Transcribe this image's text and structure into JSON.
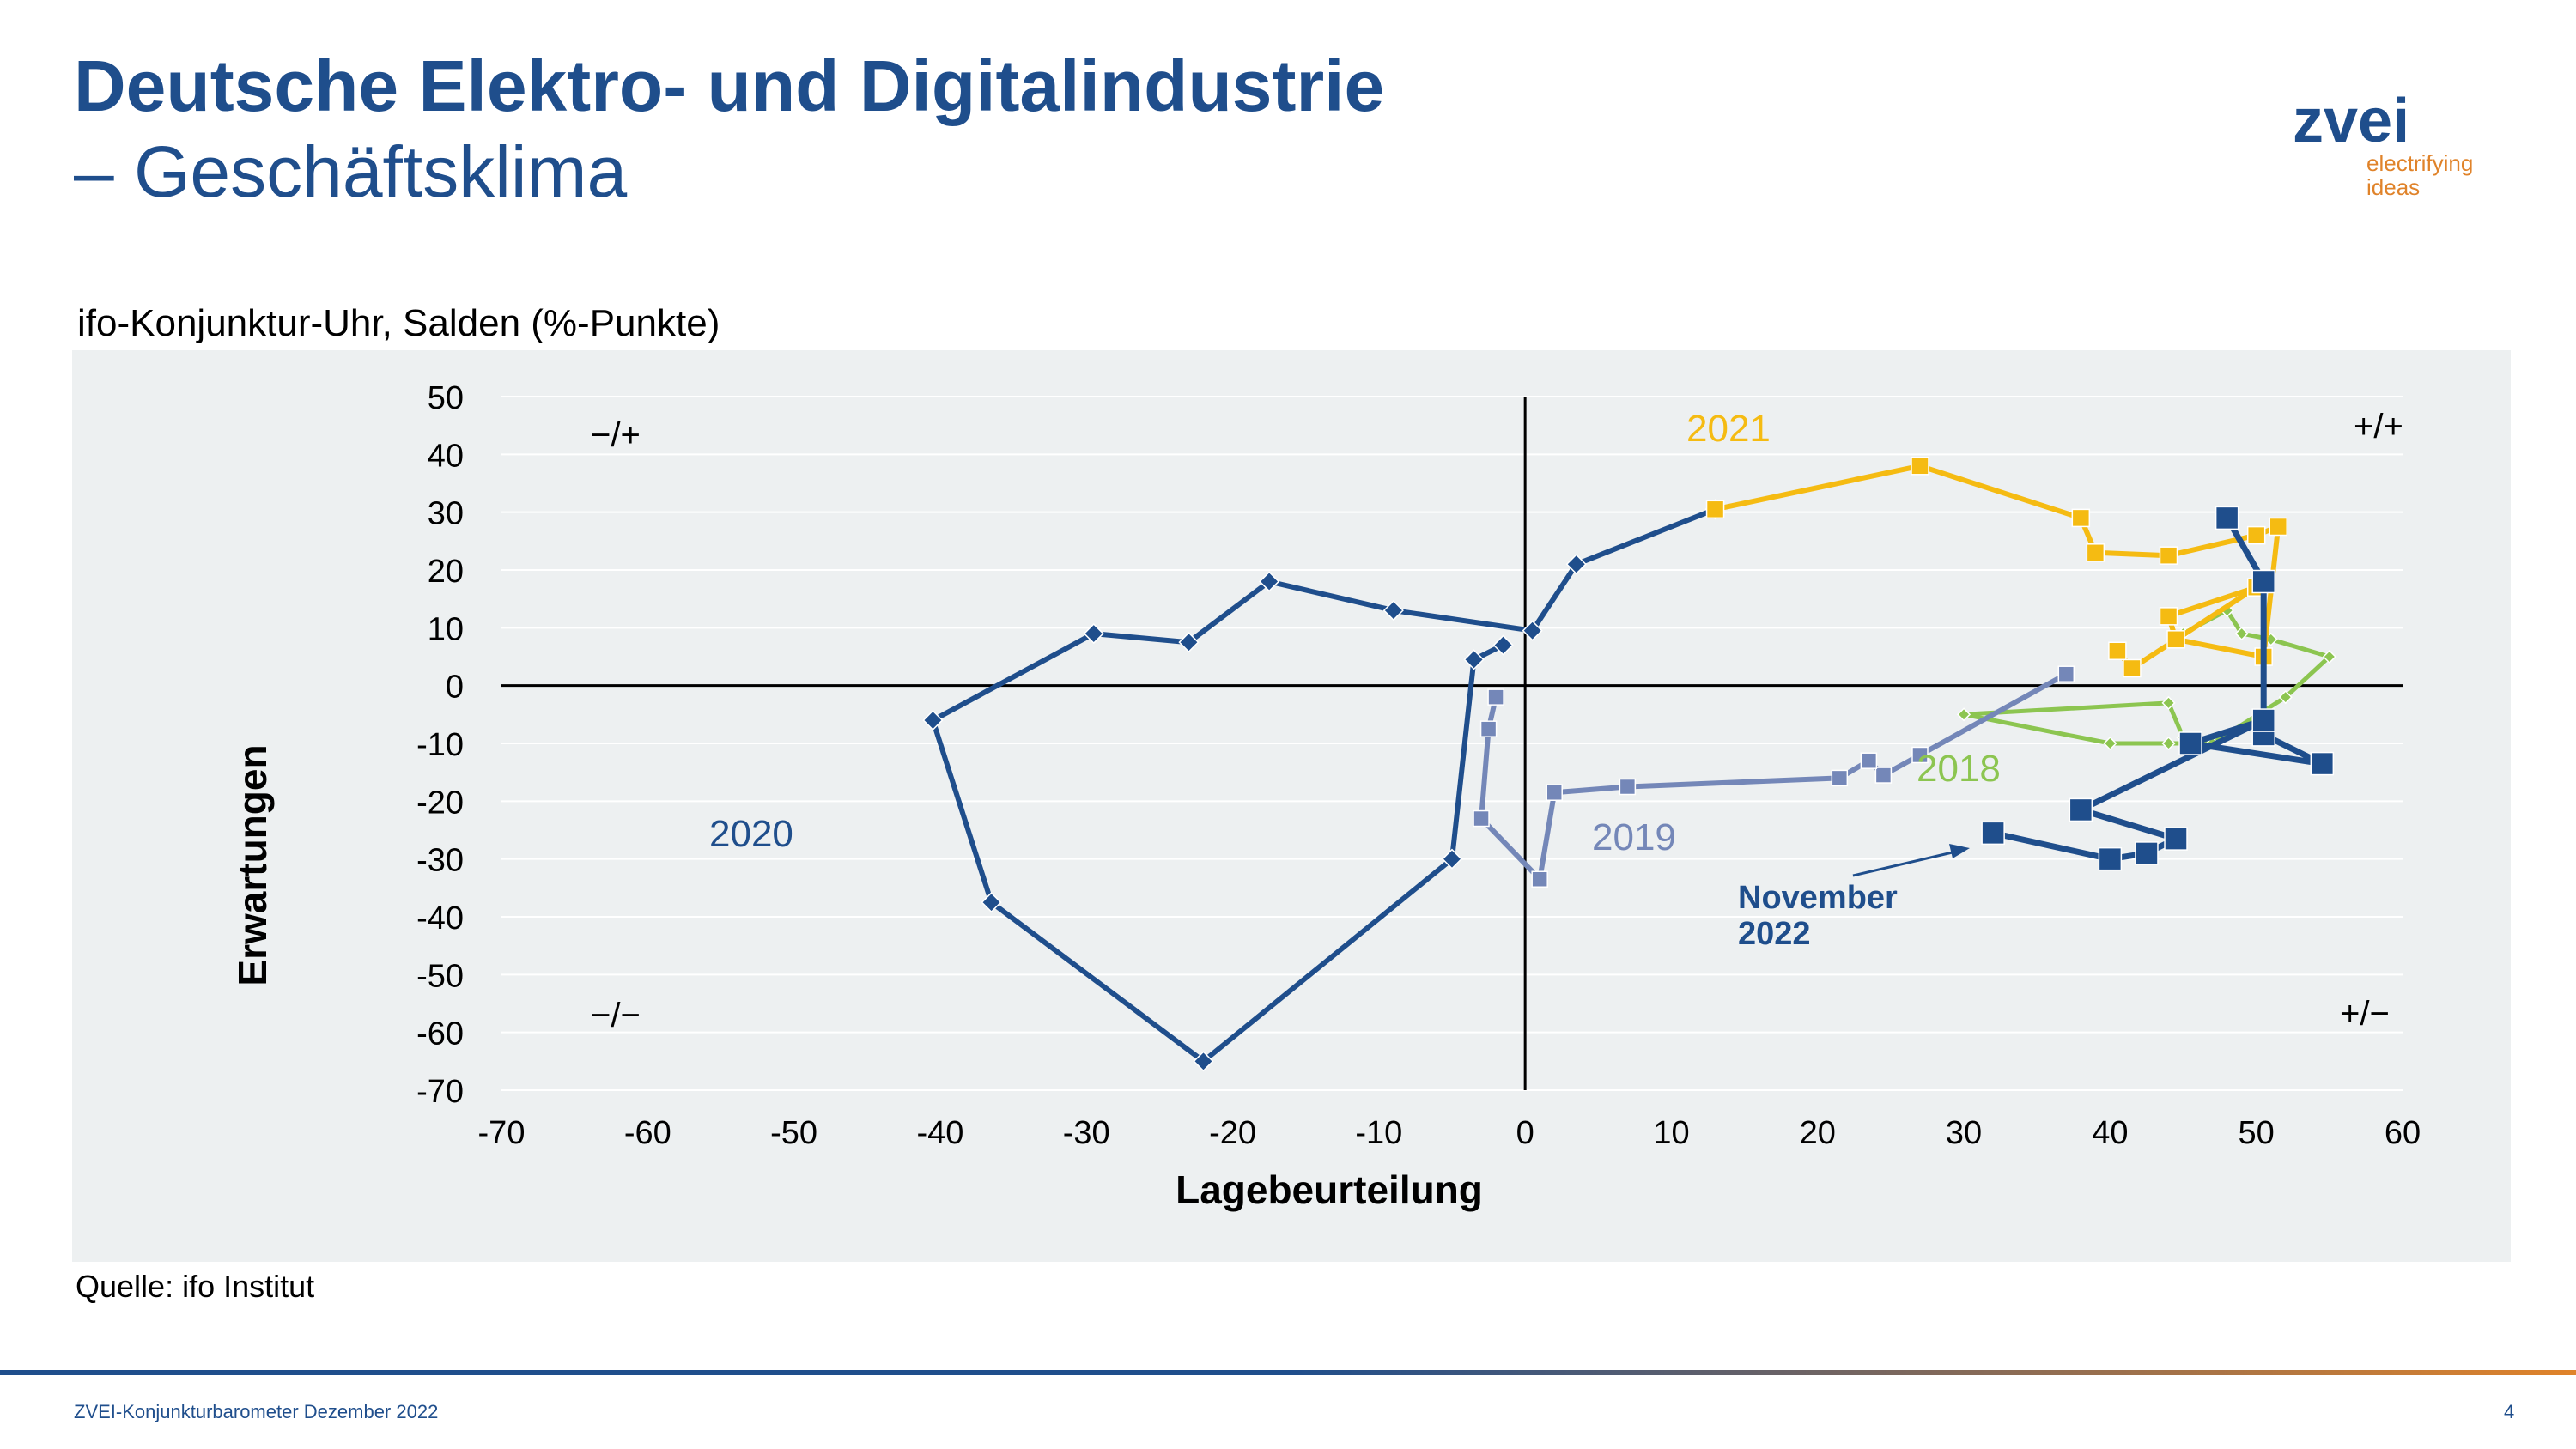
{
  "header": {
    "title_line1": "Deutsche Elektro- und Digitalindustrie",
    "title_line2": "– Geschäftsklima"
  },
  "logo": {
    "word": "zvei",
    "tag_line1": "electrifying",
    "tag_line2": "ideas"
  },
  "subtitle": "ifo-Konjunktur-Uhr, Salden (%-Punkte)",
  "source": "Quelle: ifo Institut",
  "footer": {
    "text": "ZVEI-Konjunkturbarometer Dezember 2022",
    "page": "4"
  },
  "colors": {
    "s2018": "#8cc550",
    "s2019": "#7487b8",
    "s2020": "#1f4e8c",
    "s2021": "#f5bb12",
    "s2022": "#1f4e8c",
    "axis": "#000000",
    "grid": "#ffffff",
    "panel": "#edf0f1"
  },
  "chart_data": {
    "type": "line",
    "xlabel": "Lagebeurteilung",
    "ylabel": "Erwartungen",
    "xlim": [
      -70,
      60
    ],
    "ylim": [
      -70,
      50
    ],
    "xticks": [
      -70,
      -60,
      -50,
      -40,
      -30,
      -20,
      -10,
      0,
      10,
      20,
      30,
      40,
      50,
      60
    ],
    "yticks": [
      50,
      40,
      30,
      20,
      10,
      0,
      -10,
      -20,
      -30,
      -40,
      -50,
      -60,
      -70
    ],
    "x_tick_labels": [
      "-70",
      "-60",
      "-50",
      "-40",
      "-30",
      "-20",
      "-10",
      "0",
      "10",
      "20",
      "30",
      "40",
      "50",
      "60"
    ],
    "y_tick_labels": [
      "50",
      "40",
      "30",
      "20",
      "10",
      "0",
      "-10",
      "-20",
      "-30",
      "-40",
      "-50",
      "-60",
      "-70"
    ],
    "grid": "horizontal",
    "quadrant_labels": [
      "−/+",
      "+/+",
      "−/−",
      "+/−"
    ],
    "series": [
      {
        "name": "2018",
        "marker": "diamond",
        "points": [
          [
            45,
            9
          ],
          [
            48,
            13
          ],
          [
            49,
            9
          ],
          [
            51,
            8
          ],
          [
            55,
            5
          ],
          [
            52,
            -2
          ],
          [
            47,
            -10
          ],
          [
            44,
            -10
          ],
          [
            40,
            -10
          ],
          [
            30,
            -5
          ],
          [
            44,
            -3
          ],
          [
            45,
            -9
          ]
        ]
      },
      {
        "name": "2019",
        "marker": "square",
        "points": [
          [
            37,
            2
          ],
          [
            27,
            -12
          ],
          [
            24.5,
            -15.5
          ],
          [
            23.5,
            -13
          ],
          [
            21.5,
            -16
          ],
          [
            7,
            -17.5
          ],
          [
            2,
            -18.5
          ],
          [
            1,
            -33.5
          ],
          [
            -3,
            -23
          ],
          [
            -2.5,
            -7.5
          ],
          [
            -2,
            -2
          ]
        ]
      },
      {
        "name": "2020",
        "marker": "diamond",
        "points": [
          [
            -1.5,
            7
          ],
          [
            -3.5,
            4.5
          ],
          [
            -5,
            -30
          ],
          [
            -22,
            -65
          ],
          [
            -36.5,
            -37.5
          ],
          [
            -40.5,
            -6
          ],
          [
            -29.5,
            9
          ],
          [
            -23,
            7.5
          ],
          [
            -17.5,
            18
          ],
          [
            -9,
            13
          ],
          [
            0.5,
            9.5
          ],
          [
            3.5,
            21
          ],
          [
            13,
            30.5
          ]
        ]
      },
      {
        "name": "2021",
        "marker": "square",
        "points": [
          [
            13,
            30.5
          ],
          [
            27,
            38
          ],
          [
            38,
            29
          ],
          [
            39,
            23
          ],
          [
            44,
            22.5
          ],
          [
            50,
            26
          ],
          [
            51.5,
            27.5
          ],
          [
            50.5,
            5
          ],
          [
            44.5,
            8
          ],
          [
            44,
            12
          ],
          [
            50,
            17
          ],
          [
            41.5,
            3
          ],
          [
            40.5,
            6
          ]
        ]
      },
      {
        "name": "2022",
        "marker": "square",
        "points": [
          [
            48,
            29
          ],
          [
            50.5,
            18
          ],
          [
            50.5,
            -8.5
          ],
          [
            54.5,
            -13.5
          ],
          [
            45.5,
            -10
          ],
          [
            50.5,
            -6
          ],
          [
            38,
            -21.5
          ],
          [
            44.5,
            -26.5
          ],
          [
            42.5,
            -29
          ],
          [
            40,
            -30
          ],
          [
            32,
            -25.5
          ]
        ]
      }
    ],
    "annotation": {
      "text_line1": "November",
      "text_line2": "2022",
      "points_to": [
        32,
        -25.5
      ]
    }
  }
}
